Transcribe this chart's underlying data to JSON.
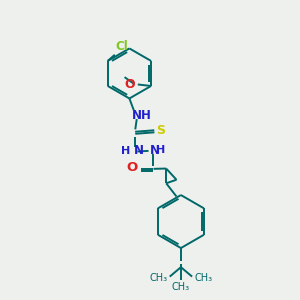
{
  "bg_color": "#eef0ee",
  "ring_color": "#006868",
  "cl_color": "#80c820",
  "o_color": "#dd2020",
  "n_color": "#2020cc",
  "s_color": "#cccc00",
  "bond_color": "#006868",
  "bond_width": 1.4,
  "fig_size": [
    3.0,
    3.0
  ],
  "dpi": 100,
  "xlim": [
    0,
    10
  ],
  "ylim": [
    0,
    10
  ]
}
